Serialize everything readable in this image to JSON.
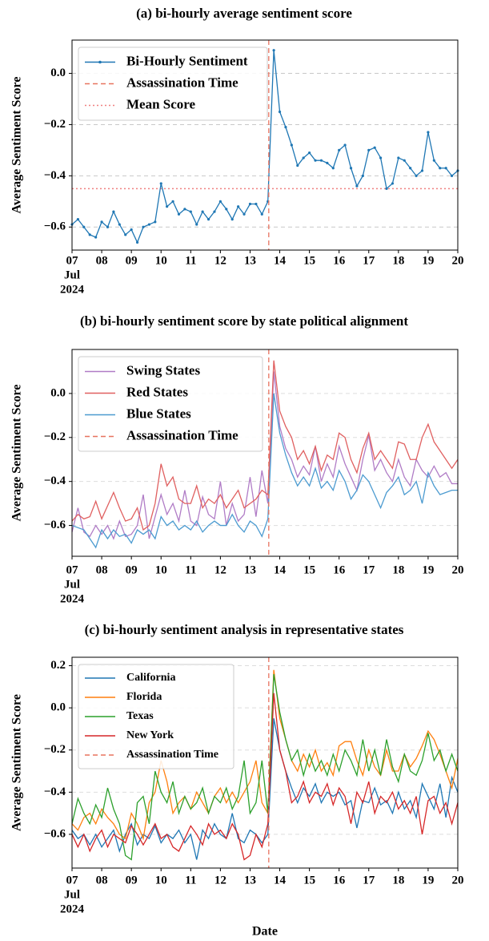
{
  "chart_data": [
    {
      "type": "line",
      "title": "(a) bi-hourly average sentiment score",
      "ylabel": "Average Sentiment Score",
      "x": [
        7,
        7.2,
        7.4,
        7.6,
        7.8,
        8,
        8.2,
        8.4,
        8.6,
        8.8,
        9,
        9.2,
        9.4,
        9.6,
        9.8,
        10,
        10.2,
        10.4,
        10.6,
        10.8,
        11,
        11.2,
        11.4,
        11.6,
        11.8,
        12,
        12.2,
        12.4,
        12.6,
        12.8,
        13,
        13.2,
        13.4,
        13.6,
        13.8,
        14,
        14.2,
        14.4,
        14.6,
        14.8,
        15,
        15.2,
        15.4,
        15.6,
        15.8,
        16,
        16.2,
        16.4,
        16.6,
        16.8,
        17,
        17.2,
        17.4,
        17.6,
        17.8,
        18,
        18.2,
        18.4,
        18.6,
        18.8,
        19,
        19.2,
        19.4,
        19.6,
        19.8,
        20
      ],
      "series": [
        {
          "name": "Bi-Hourly Sentiment",
          "color": "#1f77b4",
          "markers": true,
          "values": [
            -0.59,
            -0.57,
            -0.6,
            -0.63,
            -0.64,
            -0.58,
            -0.6,
            -0.54,
            -0.59,
            -0.63,
            -0.61,
            -0.66,
            -0.6,
            -0.59,
            -0.58,
            -0.43,
            -0.52,
            -0.5,
            -0.55,
            -0.53,
            -0.54,
            -0.59,
            -0.54,
            -0.57,
            -0.54,
            -0.5,
            -0.53,
            -0.57,
            -0.52,
            -0.55,
            -0.51,
            -0.51,
            -0.55,
            -0.5,
            0.09,
            -0.15,
            -0.21,
            -0.28,
            -0.36,
            -0.33,
            -0.31,
            -0.34,
            -0.34,
            -0.35,
            -0.37,
            -0.3,
            -0.28,
            -0.37,
            -0.44,
            -0.4,
            -0.3,
            -0.29,
            -0.33,
            -0.45,
            -0.43,
            -0.33,
            -0.34,
            -0.37,
            -0.4,
            -0.38,
            -0.23,
            -0.34,
            -0.37,
            -0.37,
            -0.4,
            -0.38
          ]
        }
      ],
      "vlines": [
        {
          "name": "Assassination Time",
          "x": 13.63,
          "color": "#e8735f",
          "style": "dashed"
        }
      ],
      "hlines": [
        {
          "name": "Mean Score",
          "y": -0.45,
          "color": "#f08080",
          "style": "dotted"
        }
      ],
      "xlim": [
        7,
        20
      ],
      "ylim": [
        -0.69,
        0.13
      ],
      "xticks": [
        {
          "value": 7,
          "label": "07"
        },
        {
          "value": 8,
          "label": "08"
        },
        {
          "value": 9,
          "label": "09"
        },
        10,
        11,
        12,
        13,
        14,
        15,
        16,
        17,
        18,
        19,
        20
      ],
      "xtick_sublabels": [
        "Jul",
        "2024"
      ],
      "yticks": [
        {
          "value": -0.6,
          "label": "−0.6"
        },
        {
          "value": -0.4,
          "label": "−0.4"
        },
        {
          "value": -0.2,
          "label": "−0.2"
        },
        {
          "value": 0,
          "label": "0.0"
        }
      ],
      "grid": true,
      "legend": "upper left"
    },
    {
      "type": "line",
      "title": "(b) bi-hourly sentiment score by state political alignment",
      "ylabel": "Average Sentiment Score",
      "x": [
        7,
        7.2,
        7.4,
        7.6,
        7.8,
        8,
        8.2,
        8.4,
        8.6,
        8.8,
        9,
        9.2,
        9.4,
        9.6,
        9.8,
        10,
        10.2,
        10.4,
        10.6,
        10.8,
        11,
        11.2,
        11.4,
        11.6,
        11.8,
        12,
        12.2,
        12.4,
        12.6,
        12.8,
        13,
        13.2,
        13.4,
        13.6,
        13.8,
        14,
        14.2,
        14.4,
        14.6,
        14.8,
        15,
        15.2,
        15.4,
        15.6,
        15.8,
        16,
        16.2,
        16.4,
        16.6,
        16.8,
        17,
        17.2,
        17.4,
        17.6,
        17.8,
        18,
        18.2,
        18.4,
        18.6,
        18.8,
        19,
        19.2,
        19.4,
        19.6,
        19.8,
        20
      ],
      "series": [
        {
          "name": "Swing States",
          "color": "#b07cc6",
          "values": [
            -0.63,
            -0.52,
            -0.63,
            -0.65,
            -0.6,
            -0.64,
            -0.6,
            -0.66,
            -0.58,
            -0.65,
            -0.64,
            -0.6,
            -0.46,
            -0.66,
            -0.56,
            -0.46,
            -0.55,
            -0.5,
            -0.58,
            -0.44,
            -0.58,
            -0.6,
            -0.47,
            -0.55,
            -0.57,
            -0.4,
            -0.6,
            -0.5,
            -0.58,
            -0.55,
            -0.38,
            -0.56,
            -0.35,
            -0.5,
            0.1,
            -0.15,
            -0.25,
            -0.3,
            -0.38,
            -0.33,
            -0.37,
            -0.24,
            -0.4,
            -0.32,
            -0.38,
            -0.24,
            -0.32,
            -0.38,
            -0.44,
            -0.3,
            -0.19,
            -0.35,
            -0.3,
            -0.36,
            -0.4,
            -0.3,
            -0.38,
            -0.42,
            -0.3,
            -0.35,
            -0.38,
            -0.33,
            -0.38,
            -0.36,
            -0.41,
            -0.41
          ]
        },
        {
          "name": "Red States",
          "color": "#e06060",
          "values": [
            -0.58,
            -0.55,
            -0.57,
            -0.56,
            -0.49,
            -0.57,
            -0.51,
            -0.45,
            -0.52,
            -0.58,
            -0.57,
            -0.52,
            -0.62,
            -0.6,
            -0.5,
            -0.32,
            -0.42,
            -0.38,
            -0.48,
            -0.5,
            -0.5,
            -0.42,
            -0.52,
            -0.48,
            -0.5,
            -0.46,
            -0.52,
            -0.48,
            -0.44,
            -0.52,
            -0.5,
            -0.48,
            -0.44,
            -0.46,
            0.15,
            -0.08,
            -0.15,
            -0.2,
            -0.3,
            -0.26,
            -0.32,
            -0.24,
            -0.35,
            -0.28,
            -0.3,
            -0.18,
            -0.2,
            -0.3,
            -0.36,
            -0.25,
            -0.18,
            -0.3,
            -0.26,
            -0.3,
            -0.34,
            -0.22,
            -0.23,
            -0.3,
            -0.3,
            -0.2,
            -0.14,
            -0.22,
            -0.26,
            -0.3,
            -0.34,
            -0.3
          ]
        },
        {
          "name": "Blue States",
          "color": "#4c9bd0",
          "values": [
            -0.6,
            -0.61,
            -0.62,
            -0.66,
            -0.7,
            -0.62,
            -0.66,
            -0.62,
            -0.65,
            -0.64,
            -0.68,
            -0.62,
            -0.64,
            -0.62,
            -0.66,
            -0.56,
            -0.6,
            -0.58,
            -0.62,
            -0.6,
            -0.62,
            -0.58,
            -0.63,
            -0.6,
            -0.58,
            -0.6,
            -0.6,
            -0.55,
            -0.6,
            -0.63,
            -0.58,
            -0.6,
            -0.65,
            -0.57,
            0.0,
            -0.18,
            -0.28,
            -0.36,
            -0.42,
            -0.38,
            -0.42,
            -0.34,
            -0.43,
            -0.4,
            -0.44,
            -0.35,
            -0.4,
            -0.48,
            -0.44,
            -0.37,
            -0.4,
            -0.46,
            -0.52,
            -0.45,
            -0.42,
            -0.38,
            -0.46,
            -0.44,
            -0.4,
            -0.5,
            -0.36,
            -0.42,
            -0.46,
            -0.45,
            -0.44,
            -0.44
          ]
        }
      ],
      "vlines": [
        {
          "name": "Assassination Time",
          "x": 13.63,
          "color": "#e8735f",
          "style": "dashed"
        }
      ],
      "xlim": [
        7,
        20
      ],
      "ylim": [
        -0.74,
        0.2
      ],
      "xticks": [
        {
          "value": 7,
          "label": "07"
        },
        {
          "value": 8,
          "label": "08"
        },
        {
          "value": 9,
          "label": "09"
        },
        10,
        11,
        12,
        13,
        14,
        15,
        16,
        17,
        18,
        19,
        20
      ],
      "xtick_sublabels": [
        "Jul",
        "2024"
      ],
      "yticks": [
        {
          "value": -0.6,
          "label": "−0.6"
        },
        {
          "value": -0.4,
          "label": "−0.4"
        },
        {
          "value": -0.2,
          "label": "−0.2"
        },
        {
          "value": 0,
          "label": "0.0"
        }
      ],
      "grid": true,
      "legend": "upper left"
    },
    {
      "type": "line",
      "title": "(c) bi-hourly sentiment analysis in representative states",
      "ylabel": "Average Sentiment Score",
      "xlabel": "Date",
      "x": [
        7,
        7.2,
        7.4,
        7.6,
        7.8,
        8,
        8.2,
        8.4,
        8.6,
        8.8,
        9,
        9.2,
        9.4,
        9.6,
        9.8,
        10,
        10.2,
        10.4,
        10.6,
        10.8,
        11,
        11.2,
        11.4,
        11.6,
        11.8,
        12,
        12.2,
        12.4,
        12.6,
        12.8,
        13,
        13.2,
        13.4,
        13.6,
        13.8,
        14,
        14.2,
        14.4,
        14.6,
        14.8,
        15,
        15.2,
        15.4,
        15.6,
        15.8,
        16,
        16.2,
        16.4,
        16.6,
        16.8,
        17,
        17.2,
        17.4,
        17.6,
        17.8,
        18,
        18.2,
        18.4,
        18.6,
        18.8,
        19,
        19.2,
        19.4,
        19.6,
        19.8,
        20
      ],
      "series": [
        {
          "name": "California",
          "color": "#1f77b4",
          "values": [
            -0.58,
            -0.62,
            -0.6,
            -0.65,
            -0.6,
            -0.66,
            -0.62,
            -0.58,
            -0.68,
            -0.6,
            -0.55,
            -0.65,
            -0.6,
            -0.62,
            -0.56,
            -0.64,
            -0.6,
            -0.62,
            -0.58,
            -0.64,
            -0.6,
            -0.72,
            -0.58,
            -0.62,
            -0.55,
            -0.6,
            -0.62,
            -0.5,
            -0.62,
            -0.64,
            -0.58,
            -0.6,
            -0.64,
            -0.6,
            -0.05,
            -0.2,
            -0.3,
            -0.38,
            -0.45,
            -0.38,
            -0.42,
            -0.36,
            -0.45,
            -0.4,
            -0.42,
            -0.4,
            -0.46,
            -0.44,
            -0.57,
            -0.44,
            -0.45,
            -0.38,
            -0.46,
            -0.44,
            -0.5,
            -0.4,
            -0.48,
            -0.44,
            -0.52,
            -0.36,
            -0.42,
            -0.48,
            -0.36,
            -0.52,
            -0.33,
            -0.4
          ]
        },
        {
          "name": "Florida",
          "color": "#ff7f0e",
          "values": [
            -0.55,
            -0.58,
            -0.52,
            -0.5,
            -0.55,
            -0.48,
            -0.52,
            -0.55,
            -0.6,
            -0.62,
            -0.5,
            -0.55,
            -0.62,
            -0.45,
            -0.4,
            -0.25,
            -0.35,
            -0.5,
            -0.45,
            -0.42,
            -0.48,
            -0.4,
            -0.45,
            -0.5,
            -0.42,
            -0.38,
            -0.45,
            -0.4,
            -0.45,
            -0.4,
            -0.35,
            -0.25,
            -0.45,
            -0.5,
            0.18,
            -0.05,
            -0.15,
            -0.25,
            -0.3,
            -0.22,
            -0.28,
            -0.2,
            -0.3,
            -0.26,
            -0.32,
            -0.18,
            -0.16,
            -0.16,
            -0.25,
            -0.32,
            -0.2,
            -0.28,
            -0.32,
            -0.2,
            -0.3,
            -0.3,
            -0.22,
            -0.28,
            -0.24,
            -0.18,
            -0.11,
            -0.15,
            -0.22,
            -0.3,
            -0.38,
            -0.24
          ]
        },
        {
          "name": "Texas",
          "color": "#2ca02c",
          "values": [
            -0.55,
            -0.43,
            -0.5,
            -0.55,
            -0.46,
            -0.52,
            -0.38,
            -0.48,
            -0.55,
            -0.7,
            -0.72,
            -0.45,
            -0.42,
            -0.55,
            -0.3,
            -0.4,
            -0.45,
            -0.35,
            -0.5,
            -0.42,
            -0.48,
            -0.45,
            -0.38,
            -0.5,
            -0.42,
            -0.45,
            -0.38,
            -0.48,
            -0.42,
            -0.25,
            -0.5,
            -0.45,
            -0.25,
            -0.5,
            0.16,
            -0.02,
            -0.15,
            -0.25,
            -0.2,
            -0.32,
            -0.22,
            -0.3,
            -0.25,
            -0.32,
            -0.22,
            -0.3,
            -0.2,
            -0.25,
            -0.32,
            -0.15,
            -0.3,
            -0.2,
            -0.32,
            -0.15,
            -0.28,
            -0.35,
            -0.22,
            -0.3,
            -0.32,
            -0.25,
            -0.12,
            -0.25,
            -0.2,
            -0.3,
            -0.22,
            -0.3
          ]
        },
        {
          "name": "New York",
          "color": "#d62728",
          "values": [
            -0.6,
            -0.66,
            -0.6,
            -0.68,
            -0.62,
            -0.58,
            -0.66,
            -0.6,
            -0.62,
            -0.64,
            -0.56,
            -0.6,
            -0.65,
            -0.6,
            -0.55,
            -0.62,
            -0.6,
            -0.66,
            -0.68,
            -0.62,
            -0.56,
            -0.6,
            -0.65,
            -0.55,
            -0.6,
            -0.58,
            -0.62,
            -0.55,
            -0.6,
            -0.72,
            -0.7,
            -0.6,
            -0.66,
            -0.55,
            0.07,
            -0.2,
            -0.3,
            -0.45,
            -0.42,
            -0.35,
            -0.45,
            -0.4,
            -0.42,
            -0.36,
            -0.46,
            -0.38,
            -0.42,
            -0.55,
            -0.4,
            -0.45,
            -0.35,
            -0.5,
            -0.42,
            -0.45,
            -0.4,
            -0.48,
            -0.44,
            -0.5,
            -0.42,
            -0.6,
            -0.44,
            -0.42,
            -0.5,
            -0.45,
            -0.55,
            -0.45
          ]
        }
      ],
      "vlines": [
        {
          "name": "Assassination Time",
          "x": 13.63,
          "color": "#e8735f",
          "style": "dashed"
        }
      ],
      "xlim": [
        7,
        20
      ],
      "ylim": [
        -0.76,
        0.24
      ],
      "xticks": [
        {
          "value": 7,
          "label": "07"
        },
        {
          "value": 8,
          "label": "08"
        },
        {
          "value": 9,
          "label": "09"
        },
        10,
        11,
        12,
        13,
        14,
        15,
        16,
        17,
        18,
        19,
        20
      ],
      "xtick_sublabels": [
        "Jul",
        "2024"
      ],
      "yticks": [
        {
          "value": -0.6,
          "label": "−0.6"
        },
        {
          "value": -0.4,
          "label": "−0.4"
        },
        {
          "value": -0.2,
          "label": "−0.2"
        },
        {
          "value": 0,
          "label": "0.0"
        },
        {
          "value": 0.2,
          "label": "0.2"
        }
      ],
      "grid": true,
      "legend": "upper left"
    }
  ]
}
